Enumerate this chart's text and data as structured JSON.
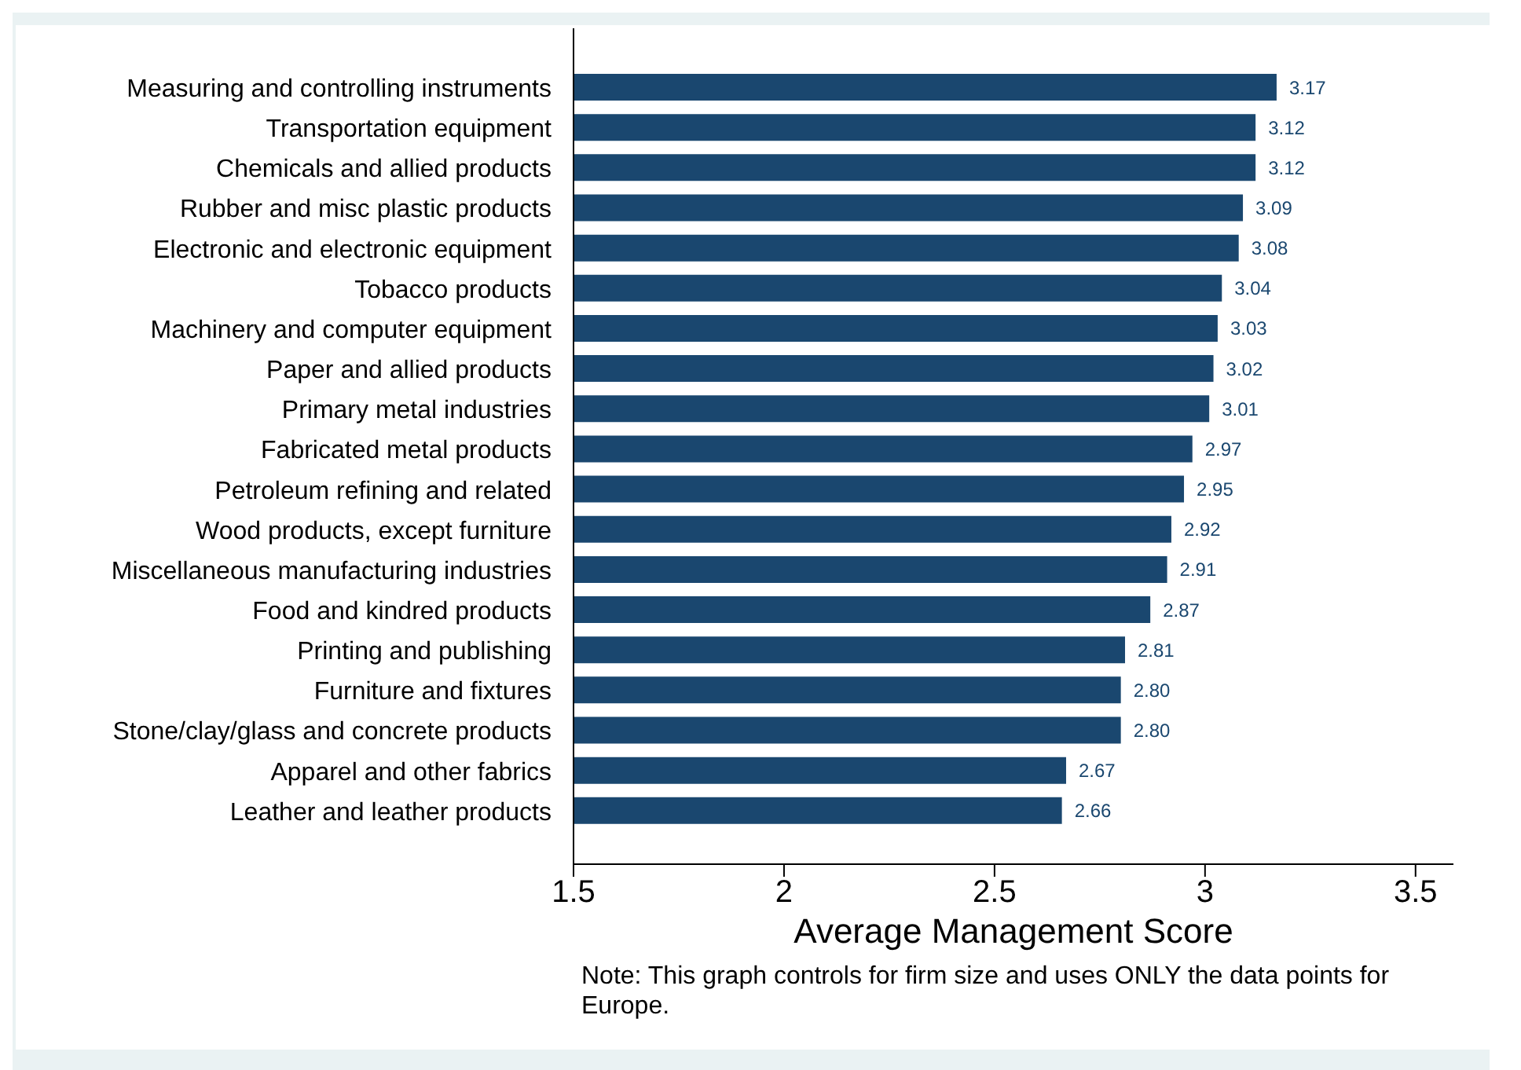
{
  "chart_data": {
    "type": "bar",
    "orientation": "horizontal",
    "xlabel": "Average Management Score",
    "categories": [
      "Measuring and controlling instruments",
      "Transportation equipment",
      "Chemicals and allied products",
      "Rubber and misc plastic products",
      "Electronic and electronic equipment",
      "Tobacco products",
      "Machinery and computer equipment",
      "Paper and allied products",
      "Primary metal industries",
      "Fabricated metal products",
      "Petroleum refining and related",
      "Wood products, except furniture",
      "Miscellaneous manufacturing industries",
      "Food and kindred products",
      "Printing and publishing",
      "Furniture and fixtures",
      "Stone/clay/glass and concrete products",
      "Apparel and other fabrics",
      "Leather and leather products"
    ],
    "values": [
      3.17,
      3.12,
      3.12,
      3.09,
      3.08,
      3.04,
      3.03,
      3.02,
      3.01,
      2.97,
      2.95,
      2.92,
      2.91,
      2.87,
      2.81,
      2.8,
      2.8,
      2.67,
      2.66
    ],
    "value_labels": [
      "3.17",
      "3.12",
      "3.12",
      "3.09",
      "3.08",
      "3.04",
      "3.03",
      "3.02",
      "3.01",
      "2.97",
      "2.95",
      "2.92",
      "2.91",
      "2.87",
      "2.81",
      "2.80",
      "2.80",
      "2.67",
      "2.66"
    ],
    "color": "#1a476f",
    "xlim": [
      1.5,
      3.59
    ],
    "xticks": [
      1.5,
      2,
      2.5,
      3,
      3.5
    ],
    "grid": false,
    "legend": false,
    "annotations": [
      "Note: This graph controls for firm size and uses ONLY the data points for Europe."
    ]
  }
}
